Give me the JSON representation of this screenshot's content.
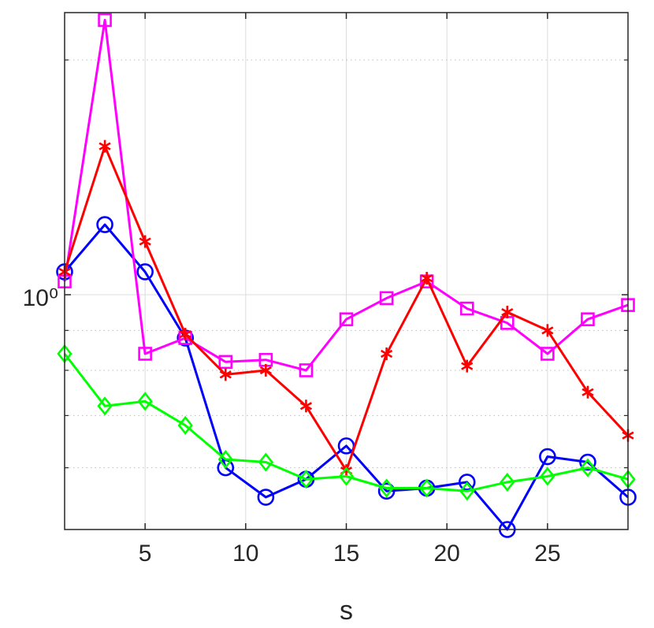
{
  "chart_data": {
    "type": "line",
    "xlabel": "s",
    "ylabel": "",
    "title": "",
    "xlim": [
      1,
      29
    ],
    "ylim": [
      0.5,
      2.3
    ],
    "yscale": "log",
    "grid": true,
    "x_ticks": [
      5,
      10,
      15,
      20,
      25
    ],
    "x_tick_labels": [
      "5",
      "10",
      "15",
      "20",
      "25"
    ],
    "y_ticks": [
      1
    ],
    "y_tick_labels": [
      "10⁰"
    ],
    "x": [
      1,
      3,
      5,
      7,
      9,
      11,
      13,
      15,
      17,
      19,
      21,
      23,
      25,
      27,
      29
    ],
    "series": [
      {
        "color": "#0000ff",
        "marker": "circle",
        "values": [
          1.07,
          1.23,
          1.07,
          0.88,
          0.6,
          0.55,
          0.58,
          0.64,
          0.56,
          0.565,
          0.575,
          0.5,
          0.62,
          0.61,
          0.55
        ]
      },
      {
        "color": "#ff00ff",
        "marker": "square",
        "values": [
          1.04,
          2.25,
          0.84,
          0.88,
          0.82,
          0.825,
          0.8,
          0.93,
          0.99,
          1.04,
          0.96,
          0.92,
          0.84,
          0.93,
          0.97
        ]
      },
      {
        "color": "#ff0000",
        "marker": "asterisk",
        "values": [
          1.07,
          1.55,
          1.17,
          0.89,
          0.79,
          0.8,
          0.72,
          0.595,
          0.84,
          1.05,
          0.81,
          0.95,
          0.9,
          0.75,
          0.66
        ]
      },
      {
        "color": "#00ff00",
        "marker": "diamond",
        "values": [
          0.84,
          0.72,
          0.73,
          0.68,
          0.615,
          0.61,
          0.58,
          0.585,
          0.565,
          0.565,
          0.56,
          0.575,
          0.585,
          0.6,
          0.58
        ]
      }
    ]
  }
}
